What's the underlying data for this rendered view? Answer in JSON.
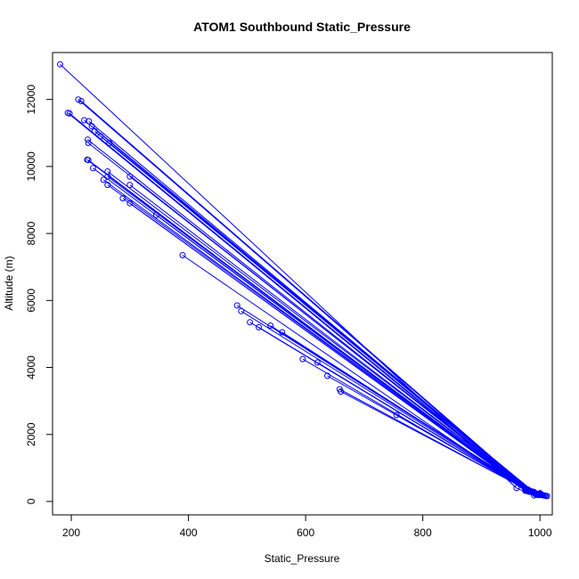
{
  "chart_data": {
    "type": "line",
    "title": "ATOM1 Southbound Static_Pressure",
    "xlabel": "Static_Pressure",
    "ylabel": "Altitude (m)",
    "xlim": [
      168,
      1021
    ],
    "ylim": [
      -400,
      13400
    ],
    "xticks": [
      200,
      400,
      600,
      800,
      1000
    ],
    "yticks": [
      0,
      2000,
      4000,
      6000,
      8000,
      10000,
      12000
    ],
    "grid": false,
    "series_color": "#0000ff",
    "markers": "open-circle",
    "series": [
      {
        "x": [
          181,
          960,
          990
        ],
        "y": [
          13050,
          400,
          180
        ]
      },
      {
        "x": [
          212,
          980,
          995
        ],
        "y": [
          12000,
          350,
          200
        ]
      },
      {
        "x": [
          217,
          985,
          1000
        ],
        "y": [
          11950,
          300,
          250
        ]
      },
      {
        "x": [
          194,
          975,
          992
        ],
        "y": [
          11600,
          380,
          220
        ]
      },
      {
        "x": [
          197,
          978,
          994
        ],
        "y": [
          11580,
          360,
          210
        ]
      },
      {
        "x": [
          222,
          982,
          998
        ],
        "y": [
          11380,
          320,
          230
        ]
      },
      {
        "x": [
          230,
          986,
          1002
        ],
        "y": [
          11350,
          300,
          200
        ]
      },
      {
        "x": [
          235,
          988,
          1005
        ],
        "y": [
          11200,
          290,
          190
        ]
      },
      {
        "x": [
          240,
          990,
          1008
        ],
        "y": [
          11050,
          280,
          180
        ]
      },
      {
        "x": [
          228,
          984,
          1010
        ],
        "y": [
          10800,
          300,
          170
        ]
      },
      {
        "x": [
          229,
          983,
          1012
        ],
        "y": [
          10700,
          310,
          160
        ]
      },
      {
        "x": [
          250,
          987,
          1000
        ],
        "y": [
          10900,
          290,
          220
        ]
      },
      {
        "x": [
          265,
          990,
          1003
        ],
        "y": [
          10700,
          270,
          200
        ]
      },
      {
        "x": [
          227,
          976,
          996
        ],
        "y": [
          10200,
          330,
          210
        ]
      },
      {
        "x": [
          229,
          977,
          997
        ],
        "y": [
          10190,
          320,
          200
        ]
      },
      {
        "x": [
          237,
          980,
          993
        ],
        "y": [
          9950,
          310,
          230
        ]
      },
      {
        "x": [
          262,
          984,
          999
        ],
        "y": [
          9850,
          300,
          210
        ]
      },
      {
        "x": [
          262,
          983,
          1001
        ],
        "y": [
          9700,
          290,
          200
        ]
      },
      {
        "x": [
          255,
          981,
          998
        ],
        "y": [
          9600,
          300,
          190
        ]
      },
      {
        "x": [
          262,
          982,
          1000
        ],
        "y": [
          9450,
          295,
          200
        ]
      },
      {
        "x": [
          300,
          987,
          1004
        ],
        "y": [
          9700,
          280,
          190
        ]
      },
      {
        "x": [
          300,
          985,
          1006
        ],
        "y": [
          9450,
          285,
          180
        ]
      },
      {
        "x": [
          288,
          979,
          995
        ],
        "y": [
          9050,
          310,
          210
        ]
      },
      {
        "x": [
          300,
          980,
          998
        ],
        "y": [
          8900,
          300,
          200
        ]
      },
      {
        "x": [
          345,
          984,
          1002
        ],
        "y": [
          8550,
          290,
          195
        ]
      },
      {
        "x": [
          390,
          975,
          992
        ],
        "y": [
          7350,
          320,
          220
        ]
      },
      {
        "x": [
          483,
          986,
          1000
        ],
        "y": [
          5850,
          280,
          200
        ]
      },
      {
        "x": [
          490,
          984,
          998
        ],
        "y": [
          5680,
          290,
          210
        ]
      },
      {
        "x": [
          505,
          983,
          996
        ],
        "y": [
          5350,
          300,
          215
        ]
      },
      {
        "x": [
          520,
          982,
          999
        ],
        "y": [
          5200,
          300,
          205
        ]
      },
      {
        "x": [
          540,
          985,
          1001
        ],
        "y": [
          5250,
          290,
          200
        ]
      },
      {
        "x": [
          560,
          986,
          1003
        ],
        "y": [
          5050,
          285,
          195
        ]
      },
      {
        "x": [
          595,
          980,
          996
        ],
        "y": [
          4250,
          310,
          210
        ]
      },
      {
        "x": [
          620,
          982,
          998
        ],
        "y": [
          4150,
          300,
          205
        ]
      },
      {
        "x": [
          637,
          984,
          1000
        ],
        "y": [
          3750,
          295,
          200
        ]
      },
      {
        "x": [
          658,
          983,
          999
        ],
        "y": [
          3350,
          300,
          205
        ]
      },
      {
        "x": [
          660,
          984,
          1001
        ],
        "y": [
          3280,
          295,
          200
        ]
      },
      {
        "x": [
          755,
          985,
          1002
        ],
        "y": [
          2580,
          290,
          195
        ]
      }
    ]
  }
}
